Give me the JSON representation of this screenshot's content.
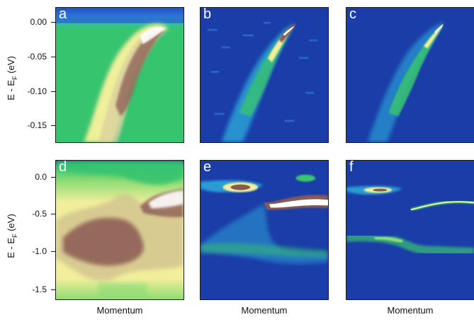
{
  "figure": {
    "top_ylabel": "E - E",
    "top_ylabel_sub": "F",
    "top_ylabel_unit": " (eV)",
    "bottom_ylabel": "E - E",
    "bottom_ylabel_sub": "F",
    "bottom_ylabel_unit": " (eV)",
    "xlabels": [
      "Momentum",
      "Momentum",
      "Momentum"
    ]
  },
  "colors": {
    "background": "#1a3da8",
    "cyan": "#2fb6e0",
    "green": "#37c46f",
    "light_green": "#8fdc74",
    "yellow": "#f1ef9b",
    "brown": "#8a5a52",
    "white": "#ffffff"
  },
  "chart_data": [
    {
      "type": "heatmap",
      "panel": "a",
      "ylabel": "E - EF (eV)",
      "ylim": [
        -0.185,
        0.02
      ],
      "yticks": [
        "0.00",
        "-0.05",
        "-0.10",
        "-0.15"
      ],
      "ytick_values": [
        0.0,
        -0.05,
        -0.1,
        -0.15
      ],
      "xlabel": "Momentum",
      "dispersion": {
        "energy": [
          0.0,
          -0.05,
          -0.1,
          -0.15,
          -0.185
        ],
        "momentum": [
          0.68,
          0.45,
          0.33,
          0.24,
          0.18
        ]
      }
    },
    {
      "type": "heatmap",
      "panel": "b",
      "ylim": [
        -0.185,
        0.02
      ],
      "xlabel": "Momentum",
      "dispersion": {
        "energy": [
          0.0,
          -0.05,
          -0.1,
          -0.15,
          -0.185
        ],
        "momentum": [
          0.78,
          0.6,
          0.48,
          0.38,
          0.3
        ]
      }
    },
    {
      "type": "heatmap",
      "panel": "c",
      "ylim": [
        -0.185,
        0.02
      ],
      "xlabel": "Momentum",
      "dispersion": {
        "energy": [
          0.0,
          -0.05,
          -0.1,
          -0.15,
          -0.185
        ],
        "momentum": [
          0.85,
          0.68,
          0.5,
          0.35,
          0.28
        ]
      }
    },
    {
      "type": "heatmap",
      "panel": "d",
      "ylabel": "E - EF (eV)",
      "ylim": [
        -1.58,
        0.2
      ],
      "yticks": [
        "0.0",
        "-0.5",
        "-1.0",
        "-1.5"
      ],
      "ytick_values": [
        0.0,
        -0.5,
        -1.0,
        -1.5
      ],
      "xlabel": "Momentum"
    },
    {
      "type": "heatmap",
      "panel": "e",
      "ylim": [
        -1.58,
        0.2
      ],
      "xlabel": "Momentum"
    },
    {
      "type": "heatmap",
      "panel": "f",
      "ylim": [
        -1.58,
        0.2
      ],
      "xlabel": "Momentum"
    }
  ],
  "panels": {
    "a": {
      "letter": "a"
    },
    "b": {
      "letter": "b"
    },
    "c": {
      "letter": "c"
    },
    "d": {
      "letter": "d"
    },
    "e": {
      "letter": "e"
    },
    "f": {
      "letter": "f"
    }
  }
}
